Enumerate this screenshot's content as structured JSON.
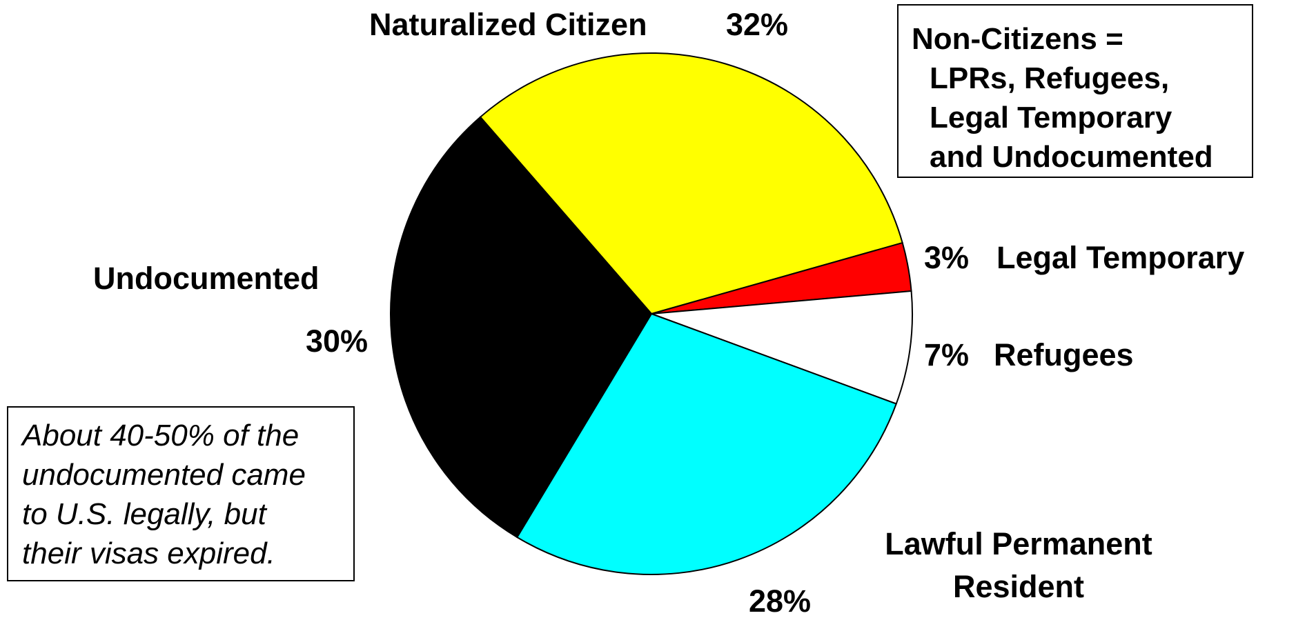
{
  "chart_data": {
    "type": "pie",
    "categories": [
      "Naturalized Citizen",
      "Legal Temporary",
      "Refugees",
      "Lawful Permanent Resident",
      "Undocumented"
    ],
    "values": [
      32,
      3,
      7,
      28,
      30
    ],
    "value_labels": [
      "32%",
      "3%",
      "7%",
      "28%",
      "30%"
    ],
    "colors": [
      "#ffff00",
      "#ff0000",
      "#ffffff",
      "#00ffff",
      "#000000"
    ],
    "annotations": [
      {
        "lines": [
          "Non-Citizens =",
          "LPRs, Refugees,",
          "Legal Temporary",
          "and Undocumented"
        ]
      },
      {
        "lines": [
          "About 40-50% of the",
          "undocumented came",
          "to U.S. legally, but",
          "their visas expired."
        ]
      }
    ]
  }
}
